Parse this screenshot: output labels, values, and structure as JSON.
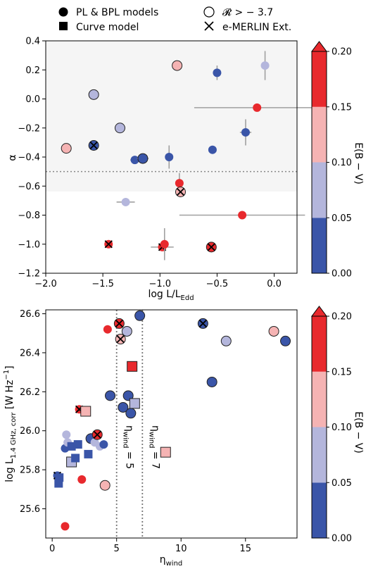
{
  "legend": {
    "items": [
      {
        "label": "PL & BPL models",
        "marker": "filled-circle"
      },
      {
        "label": "𝓡 > − 3.7",
        "marker": "open-circle"
      },
      {
        "label": "Curve model",
        "marker": "filled-square"
      },
      {
        "label": "e-MERLIN Ext.",
        "marker": "cross"
      }
    ]
  },
  "colorbar": {
    "label": "E(B − V)",
    "ticks": [
      "0.00",
      "0.05",
      "0.10",
      "0.15",
      "0.20"
    ],
    "bins": [
      {
        "from": 0.0,
        "to": 0.05,
        "color": "#3a55a8"
      },
      {
        "from": 0.05,
        "to": 0.1,
        "color": "#b4b6dc"
      },
      {
        "from": 0.1,
        "to": 0.15,
        "color": "#f5b3b3"
      },
      {
        "from": 0.15,
        "to": 0.2,
        "color": "#e8292d"
      }
    ],
    "extend": "max"
  },
  "chart_data": [
    {
      "type": "scatter",
      "xlabel": "log L/L",
      "xlabel_sub": "Edd",
      "ylabel": "α",
      "xlim": [
        -2.0,
        0.2
      ],
      "ylim": [
        -1.2,
        0.4
      ],
      "xticks": [
        "−2.0",
        "−1.5",
        "−1.0",
        "−0.5",
        "0.0"
      ],
      "xtick_values": [
        -2.0,
        -1.5,
        -1.0,
        -0.5,
        0.0
      ],
      "yticks": [
        "−1.2",
        "−1.0",
        "−0.8",
        "−0.6",
        "−0.4",
        "−0.2",
        "0.0",
        "0.2",
        "0.4"
      ],
      "ytick_values": [
        -1.2,
        -1.0,
        -0.8,
        -0.6,
        -0.4,
        -0.2,
        0.0,
        0.2,
        0.4
      ],
      "threshold_y": -0.5,
      "points": [
        {
          "x": -1.82,
          "y": -0.34,
          "ebv": 0.12,
          "marker": "circle",
          "open": true,
          "cross": false,
          "xerr": 0.03,
          "yerr": 0.02
        },
        {
          "x": -1.58,
          "y": 0.03,
          "ebv": 0.07,
          "marker": "circle",
          "open": true,
          "cross": false,
          "xerr": 0.03,
          "yerr": 0.03
        },
        {
          "x": -1.58,
          "y": -0.32,
          "ebv": 0.02,
          "marker": "circle",
          "open": true,
          "cross": true,
          "xerr": 0.02,
          "yerr": 0.02
        },
        {
          "x": -1.45,
          "y": -1.0,
          "ebv": 0.18,
          "marker": "circle",
          "open": false,
          "cross": true,
          "xerr": 0.02,
          "yerr": 0.01
        },
        {
          "x": -1.35,
          "y": -0.2,
          "ebv": 0.08,
          "marker": "circle",
          "open": true,
          "cross": false,
          "xerr": 0.03,
          "yerr": 0.02
        },
        {
          "x": -1.3,
          "y": -0.71,
          "ebv": 0.07,
          "marker": "circle",
          "open": false,
          "cross": false,
          "xerr": 0.08,
          "yerr": 0.02
        },
        {
          "x": -1.22,
          "y": -0.42,
          "ebv": 0.02,
          "marker": "circle",
          "open": false,
          "cross": false,
          "xerr": 0.04,
          "yerr": 0.02
        },
        {
          "x": -1.15,
          "y": -0.41,
          "ebv": 0.02,
          "marker": "circle",
          "open": true,
          "cross": false,
          "xerr": 0.05,
          "yerr": 0.02
        },
        {
          "x": -0.98,
          "y": -1.02,
          "ebv": 0.18,
          "marker": "circle",
          "open": false,
          "cross": true,
          "xerr": 0.1,
          "yerr": 0.02
        },
        {
          "x": -0.92,
          "y": -0.4,
          "ebv": 0.02,
          "marker": "circle",
          "open": false,
          "cross": false,
          "xerr": 0.02,
          "yerr": 0.08
        },
        {
          "x": -0.96,
          "y": -1.0,
          "ebv": 0.18,
          "marker": "circle",
          "open": false,
          "cross": false,
          "xerr": 0.02,
          "yerr": 0.11
        },
        {
          "x": -0.85,
          "y": 0.23,
          "ebv": 0.12,
          "marker": "circle",
          "open": true,
          "cross": false,
          "xerr": 0.03,
          "yerr": 0.02
        },
        {
          "x": -0.83,
          "y": -0.58,
          "ebv": 0.18,
          "marker": "circle",
          "open": false,
          "cross": false,
          "xerr": 0.02,
          "yerr": 0.07
        },
        {
          "x": -0.82,
          "y": -0.64,
          "ebv": 0.12,
          "marker": "circle",
          "open": true,
          "cross": true,
          "xerr": 0.03,
          "yerr": 0.02
        },
        {
          "x": -0.55,
          "y": -1.02,
          "ebv": 0.18,
          "marker": "circle",
          "open": true,
          "cross": true,
          "xerr": 0.03,
          "yerr": 0.02
        },
        {
          "x": -0.54,
          "y": -0.35,
          "ebv": 0.02,
          "marker": "circle",
          "open": false,
          "cross": false,
          "xerr": 0.02,
          "yerr": 0.02
        },
        {
          "x": -0.5,
          "y": 0.18,
          "ebv": 0.02,
          "marker": "circle",
          "open": false,
          "cross": false,
          "xerr": 0.02,
          "yerr": 0.05
        },
        {
          "x": -0.28,
          "y": -0.8,
          "ebv": 0.18,
          "marker": "circle",
          "open": false,
          "cross": false,
          "xerr": 0.55,
          "yerr": 0.02
        },
        {
          "x": -0.25,
          "y": -0.23,
          "ebv": 0.02,
          "marker": "circle",
          "open": false,
          "cross": false,
          "xerr": 0.05,
          "yerr": 0.09
        },
        {
          "x": -0.15,
          "y": -0.06,
          "ebv": 0.18,
          "marker": "circle",
          "open": false,
          "cross": false,
          "xerr": 0.55,
          "yerr": 0.02
        },
        {
          "x": -0.08,
          "y": 0.23,
          "ebv": 0.07,
          "marker": "circle",
          "open": false,
          "cross": false,
          "xerr": 0.02,
          "yerr": 0.1
        }
      ]
    },
    {
      "type": "scatter",
      "xlabel": "η",
      "xlabel_sub": "wind",
      "ylabel": "log L",
      "ylabel_sub": "1.4 GHz, corr",
      "ylabel_unit": " [W Hz",
      "ylabel_unit_sup": "−1",
      "ylabel_unit_end": "]",
      "xlim": [
        -0.5,
        19.0
      ],
      "ylim": [
        25.45,
        26.62
      ],
      "xticks": [
        "0",
        "5",
        "10",
        "15"
      ],
      "xtick_values": [
        0,
        5,
        10,
        15
      ],
      "yticks": [
        "25.6",
        "25.8",
        "26.0",
        "26.2",
        "26.4",
        "26.6"
      ],
      "ytick_values": [
        25.6,
        25.8,
        26.0,
        26.2,
        26.4,
        26.6
      ],
      "vlines": [
        {
          "x": 5,
          "label_main": "η",
          "label_sub": "wind",
          "label_end": " = 5"
        },
        {
          "x": 7,
          "label_main": "η",
          "label_sub": "wind",
          "label_end": " = 7"
        }
      ],
      "points": [
        {
          "x": 0.4,
          "y": 25.77,
          "ebv": 0.02,
          "marker": "circle",
          "open": false,
          "cross": true
        },
        {
          "x": 0.5,
          "y": 25.73,
          "ebv": 0.02,
          "marker": "square",
          "open": false,
          "cross": false
        },
        {
          "x": 0.55,
          "y": 25.76,
          "ebv": 0.02,
          "marker": "square",
          "open": false,
          "cross": false
        },
        {
          "x": 1.0,
          "y": 25.91,
          "ebv": 0.02,
          "marker": "circle",
          "open": false,
          "cross": false
        },
        {
          "x": 1.1,
          "y": 25.98,
          "ebv": 0.07,
          "marker": "circle",
          "open": false,
          "cross": false
        },
        {
          "x": 1.2,
          "y": 25.94,
          "ebv": 0.07,
          "marker": "circle",
          "open": false,
          "cross": false
        },
        {
          "x": 1.0,
          "y": 25.51,
          "ebv": 0.18,
          "marker": "circle",
          "open": false,
          "cross": false
        },
        {
          "x": 1.5,
          "y": 25.92,
          "ebv": 0.02,
          "marker": "square",
          "open": false,
          "cross": false
        },
        {
          "x": 1.5,
          "y": 25.84,
          "ebv": 0.07,
          "marker": "square",
          "open": true,
          "cross": false
        },
        {
          "x": 1.8,
          "y": 25.86,
          "ebv": 0.02,
          "marker": "square",
          "open": false,
          "cross": false
        },
        {
          "x": 2.0,
          "y": 25.93,
          "ebv": 0.02,
          "marker": "square",
          "open": false,
          "cross": false
        },
        {
          "x": 2.1,
          "y": 26.11,
          "ebv": 0.18,
          "marker": "circle",
          "open": false,
          "cross": true
        },
        {
          "x": 2.3,
          "y": 25.75,
          "ebv": 0.18,
          "marker": "circle",
          "open": false,
          "cross": false
        },
        {
          "x": 2.6,
          "y": 26.1,
          "ebv": 0.12,
          "marker": "square",
          "open": true,
          "cross": false
        },
        {
          "x": 2.8,
          "y": 25.88,
          "ebv": 0.02,
          "marker": "square",
          "open": false,
          "cross": false
        },
        {
          "x": 3.0,
          "y": 25.96,
          "ebv": 0.02,
          "marker": "circle",
          "open": true,
          "cross": false
        },
        {
          "x": 3.3,
          "y": 25.94,
          "ebv": 0.07,
          "marker": "circle",
          "open": false,
          "cross": false
        },
        {
          "x": 3.5,
          "y": 25.98,
          "ebv": 0.18,
          "marker": "circle",
          "open": true,
          "cross": true
        },
        {
          "x": 3.7,
          "y": 25.92,
          "ebv": 0.07,
          "marker": "circle",
          "open": false,
          "cross": false
        },
        {
          "x": 4.0,
          "y": 25.93,
          "ebv": 0.02,
          "marker": "circle",
          "open": false,
          "cross": false
        },
        {
          "x": 4.1,
          "y": 25.72,
          "ebv": 0.12,
          "marker": "circle",
          "open": true,
          "cross": false
        },
        {
          "x": 4.3,
          "y": 26.52,
          "ebv": 0.18,
          "marker": "circle",
          "open": false,
          "cross": false
        },
        {
          "x": 4.5,
          "y": 26.18,
          "ebv": 0.02,
          "marker": "circle",
          "open": true,
          "cross": false
        },
        {
          "x": 5.2,
          "y": 26.55,
          "ebv": 0.18,
          "marker": "circle",
          "open": true,
          "cross": true
        },
        {
          "x": 5.3,
          "y": 26.47,
          "ebv": 0.12,
          "marker": "circle",
          "open": true,
          "cross": true
        },
        {
          "x": 5.5,
          "y": 26.12,
          "ebv": 0.02,
          "marker": "circle",
          "open": true,
          "cross": false
        },
        {
          "x": 5.8,
          "y": 26.51,
          "ebv": 0.07,
          "marker": "circle",
          "open": true,
          "cross": false
        },
        {
          "x": 5.9,
          "y": 26.18,
          "ebv": 0.02,
          "marker": "circle",
          "open": true,
          "cross": false
        },
        {
          "x": 6.1,
          "y": 26.09,
          "ebv": 0.02,
          "marker": "circle",
          "open": true,
          "cross": false
        },
        {
          "x": 6.2,
          "y": 26.33,
          "ebv": 0.18,
          "marker": "square",
          "open": true,
          "cross": false
        },
        {
          "x": 6.4,
          "y": 26.14,
          "ebv": 0.07,
          "marker": "square",
          "open": true,
          "cross": false
        },
        {
          "x": 6.8,
          "y": 26.59,
          "ebv": 0.02,
          "marker": "circle",
          "open": true,
          "cross": false
        },
        {
          "x": 8.8,
          "y": 25.89,
          "ebv": 0.12,
          "marker": "square",
          "open": true,
          "cross": false
        },
        {
          "x": 11.7,
          "y": 26.55,
          "ebv": 0.02,
          "marker": "circle",
          "open": true,
          "cross": true
        },
        {
          "x": 12.4,
          "y": 26.25,
          "ebv": 0.02,
          "marker": "circle",
          "open": true,
          "cross": false
        },
        {
          "x": 13.5,
          "y": 26.46,
          "ebv": 0.07,
          "marker": "circle",
          "open": true,
          "cross": false
        },
        {
          "x": 17.2,
          "y": 26.51,
          "ebv": 0.12,
          "marker": "circle",
          "open": true,
          "cross": false
        },
        {
          "x": 18.1,
          "y": 26.46,
          "ebv": 0.02,
          "marker": "circle",
          "open": true,
          "cross": false
        }
      ]
    }
  ]
}
